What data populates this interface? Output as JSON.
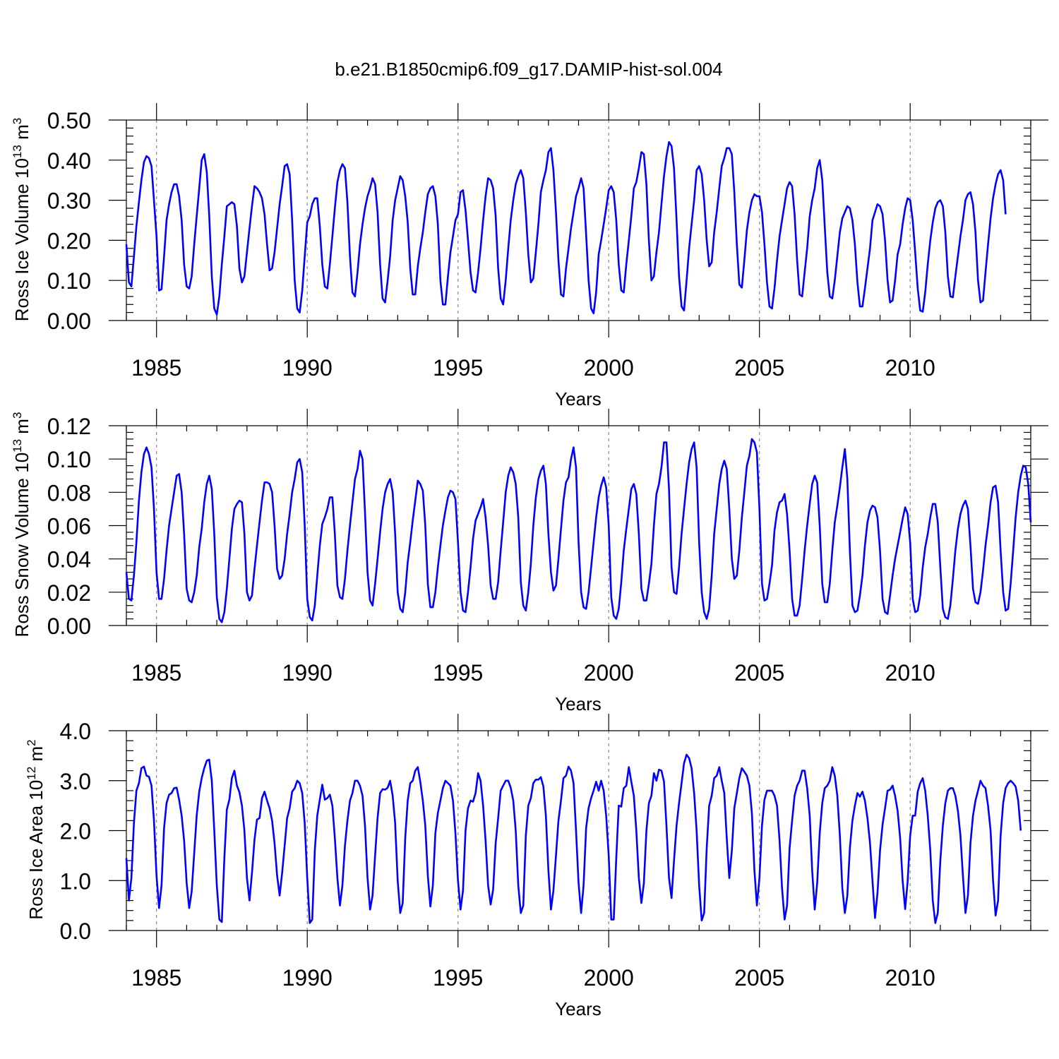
{
  "figure_title": "b.e21.B1850cmip6.f09_g17.DAMIP-hist-sol.004",
  "chart_data": [
    {
      "type": "line",
      "title": "b.e21.B1850cmip6.f09_g17.DAMIP-hist-sol.004",
      "ylabel": "Ross Ice Volume 10",
      "ylabel_exp": "13",
      "ylabel_unit": " m",
      "ylabel_unit_exp": "3",
      "xlabel": "Years",
      "xlim": [
        1984.0,
        2014.0
      ],
      "ylim": [
        0.0,
        0.5
      ],
      "yticks": [
        0.0,
        0.1,
        0.2,
        0.3,
        0.4,
        0.5
      ],
      "ytick_labels": [
        "0.00",
        "0.10",
        "0.20",
        "0.30",
        "0.40",
        "0.50"
      ],
      "xticks": [
        1985,
        1990,
        1995,
        2000,
        2005,
        2010
      ],
      "xtick_labels": [
        "1985",
        "1990",
        "1995",
        "2000",
        "2005",
        "2010"
      ],
      "grid": "dashed vertical at x ticks",
      "color": "#0000ff",
      "x_start": 1984.0,
      "x_step": 0.0833333,
      "values": [
        0.19,
        0.095,
        0.085,
        0.16,
        0.235,
        0.295,
        0.35,
        0.395,
        0.41,
        0.405,
        0.385,
        0.3,
        0.21,
        0.075,
        0.078,
        0.16,
        0.25,
        0.29,
        0.32,
        0.34,
        0.34,
        0.31,
        0.25,
        0.14,
        0.085,
        0.08,
        0.11,
        0.19,
        0.26,
        0.33,
        0.4,
        0.415,
        0.37,
        0.26,
        0.11,
        0.03,
        0.015,
        0.06,
        0.14,
        0.21,
        0.285,
        0.29,
        0.295,
        0.29,
        0.235,
        0.13,
        0.095,
        0.11,
        0.17,
        0.23,
        0.285,
        0.335,
        0.33,
        0.32,
        0.305,
        0.265,
        0.19,
        0.125,
        0.13,
        0.17,
        0.23,
        0.29,
        0.335,
        0.385,
        0.39,
        0.365,
        0.25,
        0.1,
        0.03,
        0.02,
        0.075,
        0.16,
        0.245,
        0.26,
        0.29,
        0.305,
        0.305,
        0.235,
        0.14,
        0.085,
        0.08,
        0.14,
        0.21,
        0.28,
        0.345,
        0.375,
        0.39,
        0.38,
        0.295,
        0.16,
        0.07,
        0.06,
        0.12,
        0.19,
        0.24,
        0.28,
        0.31,
        0.33,
        0.355,
        0.34,
        0.27,
        0.14,
        0.055,
        0.045,
        0.1,
        0.16,
        0.25,
        0.3,
        0.33,
        0.36,
        0.35,
        0.31,
        0.245,
        0.13,
        0.065,
        0.065,
        0.135,
        0.18,
        0.22,
        0.27,
        0.315,
        0.33,
        0.335,
        0.31,
        0.24,
        0.1,
        0.04,
        0.04,
        0.11,
        0.17,
        0.21,
        0.25,
        0.265,
        0.32,
        0.325,
        0.275,
        0.2,
        0.12,
        0.075,
        0.07,
        0.12,
        0.18,
        0.25,
        0.31,
        0.355,
        0.35,
        0.33,
        0.26,
        0.13,
        0.055,
        0.04,
        0.1,
        0.18,
        0.25,
        0.3,
        0.34,
        0.36,
        0.375,
        0.355,
        0.27,
        0.165,
        0.095,
        0.105,
        0.17,
        0.24,
        0.32,
        0.35,
        0.375,
        0.42,
        0.43,
        0.375,
        0.27,
        0.15,
        0.065,
        0.06,
        0.13,
        0.18,
        0.23,
        0.27,
        0.31,
        0.33,
        0.355,
        0.33,
        0.215,
        0.1,
        0.03,
        0.018,
        0.07,
        0.165,
        0.2,
        0.24,
        0.28,
        0.325,
        0.335,
        0.32,
        0.25,
        0.14,
        0.075,
        0.07,
        0.14,
        0.2,
        0.26,
        0.33,
        0.345,
        0.38,
        0.42,
        0.415,
        0.34,
        0.2,
        0.1,
        0.11,
        0.17,
        0.22,
        0.29,
        0.36,
        0.41,
        0.445,
        0.435,
        0.38,
        0.25,
        0.11,
        0.035,
        0.025,
        0.1,
        0.18,
        0.24,
        0.3,
        0.375,
        0.385,
        0.365,
        0.3,
        0.2,
        0.135,
        0.145,
        0.22,
        0.27,
        0.33,
        0.385,
        0.405,
        0.43,
        0.43,
        0.415,
        0.32,
        0.19,
        0.09,
        0.082,
        0.15,
        0.225,
        0.27,
        0.3,
        0.315,
        0.31,
        0.31,
        0.27,
        0.19,
        0.095,
        0.035,
        0.03,
        0.08,
        0.15,
        0.21,
        0.25,
        0.29,
        0.33,
        0.345,
        0.335,
        0.265,
        0.15,
        0.065,
        0.06,
        0.12,
        0.18,
        0.26,
        0.3,
        0.33,
        0.38,
        0.4,
        0.35,
        0.235,
        0.12,
        0.06,
        0.055,
        0.1,
        0.16,
        0.22,
        0.255,
        0.27,
        0.285,
        0.28,
        0.25,
        0.19,
        0.095,
        0.035,
        0.035,
        0.08,
        0.13,
        0.18,
        0.25,
        0.27,
        0.29,
        0.285,
        0.265,
        0.2,
        0.1,
        0.045,
        0.05,
        0.1,
        0.165,
        0.19,
        0.24,
        0.28,
        0.305,
        0.3,
        0.25,
        0.17,
        0.08,
        0.025,
        0.022,
        0.07,
        0.14,
        0.2,
        0.245,
        0.28,
        0.295,
        0.3,
        0.285,
        0.22,
        0.11,
        0.06,
        0.058,
        0.11,
        0.16,
        0.21,
        0.25,
        0.3,
        0.315,
        0.32,
        0.29,
        0.22,
        0.1,
        0.045,
        0.05,
        0.12,
        0.19,
        0.255,
        0.305,
        0.34,
        0.365,
        0.375,
        0.35,
        0.265
      ]
    },
    {
      "type": "line",
      "ylabel": "Ross Snow Volume 10",
      "ylabel_exp": "13",
      "ylabel_unit": " m",
      "ylabel_unit_exp": "3",
      "xlabel": "Years",
      "xlim": [
        1984.0,
        2014.0
      ],
      "ylim": [
        0.0,
        0.12
      ],
      "yticks": [
        0.0,
        0.02,
        0.04,
        0.06,
        0.08,
        0.1,
        0.12
      ],
      "ytick_labels": [
        "0.00",
        "0.02",
        "0.04",
        "0.06",
        "0.08",
        "0.10",
        "0.12"
      ],
      "xticks": [
        1985,
        1990,
        1995,
        2000,
        2005,
        2010
      ],
      "xtick_labels": [
        "1985",
        "1990",
        "1995",
        "2000",
        "2005",
        "2010"
      ],
      "grid": "dashed vertical at x ticks",
      "color": "#0000ff",
      "x_start": 1984.0,
      "x_step": 0.0833333,
      "values": [
        0.032,
        0.016,
        0.015,
        0.03,
        0.05,
        0.075,
        0.092,
        0.103,
        0.107,
        0.103,
        0.095,
        0.07,
        0.032,
        0.016,
        0.016,
        0.028,
        0.045,
        0.06,
        0.07,
        0.08,
        0.09,
        0.091,
        0.08,
        0.055,
        0.022,
        0.015,
        0.014,
        0.02,
        0.03,
        0.047,
        0.058,
        0.074,
        0.085,
        0.09,
        0.082,
        0.055,
        0.017,
        0.004,
        0.002,
        0.008,
        0.022,
        0.04,
        0.058,
        0.07,
        0.073,
        0.075,
        0.074,
        0.055,
        0.02,
        0.015,
        0.018,
        0.034,
        0.048,
        0.062,
        0.075,
        0.086,
        0.086,
        0.085,
        0.08,
        0.06,
        0.034,
        0.028,
        0.03,
        0.04,
        0.055,
        0.067,
        0.08,
        0.088,
        0.098,
        0.1,
        0.092,
        0.06,
        0.016,
        0.005,
        0.003,
        0.012,
        0.03,
        0.048,
        0.061,
        0.065,
        0.07,
        0.077,
        0.077,
        0.055,
        0.024,
        0.017,
        0.016,
        0.028,
        0.045,
        0.06,
        0.074,
        0.088,
        0.094,
        0.105,
        0.1,
        0.068,
        0.032,
        0.015,
        0.012,
        0.025,
        0.04,
        0.056,
        0.07,
        0.08,
        0.085,
        0.088,
        0.08,
        0.055,
        0.02,
        0.01,
        0.008,
        0.02,
        0.038,
        0.05,
        0.063,
        0.075,
        0.087,
        0.085,
        0.081,
        0.06,
        0.025,
        0.011,
        0.011,
        0.02,
        0.035,
        0.048,
        0.06,
        0.069,
        0.077,
        0.081,
        0.08,
        0.076,
        0.05,
        0.02,
        0.009,
        0.008,
        0.02,
        0.035,
        0.052,
        0.063,
        0.067,
        0.071,
        0.076,
        0.065,
        0.048,
        0.024,
        0.016,
        0.016,
        0.026,
        0.045,
        0.062,
        0.08,
        0.09,
        0.095,
        0.092,
        0.085,
        0.065,
        0.026,
        0.012,
        0.009,
        0.02,
        0.037,
        0.06,
        0.077,
        0.088,
        0.093,
        0.096,
        0.085,
        0.055,
        0.032,
        0.021,
        0.024,
        0.04,
        0.058,
        0.075,
        0.086,
        0.089,
        0.1,
        0.107,
        0.095,
        0.05,
        0.02,
        0.011,
        0.01,
        0.02,
        0.035,
        0.05,
        0.065,
        0.077,
        0.084,
        0.089,
        0.083,
        0.06,
        0.017,
        0.006,
        0.004,
        0.01,
        0.026,
        0.045,
        0.058,
        0.07,
        0.082,
        0.085,
        0.079,
        0.055,
        0.022,
        0.015,
        0.015,
        0.025,
        0.037,
        0.06,
        0.079,
        0.085,
        0.095,
        0.11,
        0.11,
        0.082,
        0.035,
        0.02,
        0.019,
        0.035,
        0.055,
        0.07,
        0.085,
        0.098,
        0.106,
        0.11,
        0.095,
        0.05,
        0.02,
        0.008,
        0.004,
        0.01,
        0.03,
        0.055,
        0.07,
        0.085,
        0.094,
        0.099,
        0.094,
        0.07,
        0.04,
        0.028,
        0.03,
        0.045,
        0.065,
        0.08,
        0.096,
        0.102,
        0.112,
        0.11,
        0.104,
        0.07,
        0.025,
        0.015,
        0.016,
        0.025,
        0.036,
        0.057,
        0.068,
        0.074,
        0.075,
        0.079,
        0.067,
        0.045,
        0.016,
        0.006,
        0.006,
        0.012,
        0.028,
        0.045,
        0.06,
        0.073,
        0.085,
        0.09,
        0.086,
        0.06,
        0.025,
        0.014,
        0.014,
        0.025,
        0.045,
        0.062,
        0.072,
        0.083,
        0.095,
        0.106,
        0.088,
        0.045,
        0.012,
        0.008,
        0.009,
        0.018,
        0.03,
        0.048,
        0.062,
        0.069,
        0.072,
        0.071,
        0.065,
        0.045,
        0.016,
        0.008,
        0.007,
        0.018,
        0.03,
        0.04,
        0.048,
        0.056,
        0.064,
        0.071,
        0.067,
        0.05,
        0.016,
        0.008,
        0.009,
        0.018,
        0.035,
        0.047,
        0.055,
        0.065,
        0.073,
        0.073,
        0.062,
        0.035,
        0.01,
        0.005,
        0.004,
        0.012,
        0.028,
        0.045,
        0.058,
        0.067,
        0.072,
        0.075,
        0.07,
        0.048,
        0.022,
        0.014,
        0.013,
        0.02,
        0.033,
        0.048,
        0.06,
        0.074,
        0.083,
        0.084,
        0.074,
        0.045,
        0.02,
        0.009,
        0.01,
        0.025,
        0.045,
        0.065,
        0.08,
        0.09,
        0.096,
        0.095,
        0.085,
        0.062
      ]
    },
    {
      "type": "line",
      "ylabel": "Ross Ice Area 10",
      "ylabel_exp": "12",
      "ylabel_unit": " m",
      "ylabel_unit_exp": "2",
      "xlabel": "Years",
      "xlim": [
        1984.0,
        2014.0
      ],
      "ylim": [
        0.0,
        4.0
      ],
      "yticks": [
        0.0,
        1.0,
        2.0,
        3.0,
        4.0
      ],
      "ytick_labels": [
        "0.0",
        "1.0",
        "2.0",
        "3.0",
        "4.0"
      ],
      "xticks": [
        1985,
        1990,
        1995,
        2000,
        2005,
        2010
      ],
      "xtick_labels": [
        "1985",
        "1990",
        "1995",
        "2000",
        "2005",
        "2010"
      ],
      "grid": "dashed vertical at x ticks",
      "color": "#0000ff",
      "x_start": 1984.0,
      "x_step": 0.0833333,
      "values": [
        1.45,
        0.6,
        1.05,
        2.15,
        2.8,
        2.95,
        3.25,
        3.28,
        3.1,
        3.08,
        2.9,
        2.2,
        1.1,
        0.45,
        0.9,
        2.05,
        2.55,
        2.72,
        2.75,
        2.85,
        2.86,
        2.62,
        2.3,
        1.8,
        0.95,
        0.45,
        0.78,
        1.55,
        2.3,
        2.78,
        3.05,
        3.25,
        3.4,
        3.42,
        3.0,
        2.0,
        0.9,
        0.22,
        0.17,
        1.45,
        2.42,
        2.62,
        3.05,
        3.2,
        2.9,
        2.77,
        2.5,
        2.0,
        1.05,
        0.6,
        1.15,
        1.82,
        2.22,
        2.25,
        2.65,
        2.78,
        2.6,
        2.45,
        2.2,
        1.75,
        1.1,
        0.7,
        1.15,
        1.7,
        2.25,
        2.45,
        2.78,
        2.85,
        3.0,
        2.95,
        2.75,
        2.15,
        1.05,
        0.15,
        0.22,
        1.6,
        2.3,
        2.62,
        2.92,
        2.62,
        2.65,
        2.72,
        2.5,
        1.85,
        1.05,
        0.5,
        0.9,
        1.7,
        2.2,
        2.6,
        2.75,
        3.0,
        3.0,
        2.9,
        2.7,
        2.1,
        1.05,
        0.42,
        0.7,
        1.5,
        2.25,
        2.75,
        2.83,
        2.82,
        2.86,
        3.0,
        2.7,
        2.15,
        1.0,
        0.35,
        0.55,
        1.85,
        2.6,
        2.95,
        3.0,
        3.2,
        3.27,
        2.98,
        2.6,
        2.1,
        1.1,
        0.48,
        0.9,
        1.95,
        2.35,
        2.6,
        2.85,
        3.0,
        2.95,
        2.9,
        2.6,
        1.95,
        1.0,
        0.42,
        0.8,
        2.0,
        2.45,
        2.6,
        2.58,
        2.75,
        3.15,
        3.0,
        2.5,
        1.8,
        0.9,
        0.52,
        0.82,
        1.75,
        2.25,
        2.8,
        2.9,
        3.0,
        3.0,
        2.86,
        2.6,
        2.0,
        0.9,
        0.35,
        0.5,
        1.9,
        2.5,
        2.65,
        2.95,
        3.02,
        3.02,
        3.07,
        2.88,
        2.3,
        1.2,
        0.42,
        0.8,
        1.5,
        2.2,
        2.6,
        3.05,
        3.1,
        3.28,
        3.2,
        2.95,
        2.0,
        0.95,
        0.35,
        0.9,
        2.05,
        2.45,
        2.65,
        2.8,
        2.98,
        2.8,
        3.0,
        2.8,
        2.3,
        1.5,
        0.22,
        0.22,
        1.45,
        2.5,
        2.48,
        2.85,
        2.9,
        3.27,
        2.98,
        2.7,
        2.0,
        1.05,
        0.55,
        0.95,
        2.0,
        2.55,
        2.7,
        3.15,
        3.0,
        3.22,
        3.2,
        2.98,
        2.1,
        1.05,
        0.65,
        1.4,
        2.1,
        2.55,
        2.95,
        3.35,
        3.52,
        3.45,
        3.25,
        2.75,
        2.0,
        0.9,
        0.2,
        0.35,
        1.65,
        2.5,
        2.7,
        3.05,
        3.1,
        3.27,
        3.0,
        2.75,
        1.85,
        1.05,
        1.6,
        2.45,
        2.75,
        3.05,
        3.25,
        3.18,
        3.1,
        2.9,
        2.35,
        1.2,
        0.5,
        1.05,
        2.1,
        2.62,
        2.8,
        2.8,
        2.8,
        2.7,
        2.5,
        1.8,
        0.85,
        0.22,
        0.5,
        1.65,
        2.2,
        2.7,
        2.9,
        3.0,
        3.2,
        3.2,
        2.85,
        2.3,
        1.2,
        0.42,
        0.95,
        1.95,
        2.55,
        2.85,
        2.9,
        3.0,
        3.27,
        3.1,
        2.7,
        1.9,
        0.85,
        0.35,
        0.7,
        1.65,
        2.2,
        2.5,
        2.75,
        2.68,
        2.78,
        2.6,
        2.25,
        1.75,
        1.0,
        0.25,
        0.75,
        1.6,
        2.12,
        2.45,
        2.8,
        2.82,
        2.9,
        2.7,
        2.4,
        1.85,
        1.0,
        0.43,
        0.98,
        1.9,
        2.3,
        2.3,
        2.78,
        2.95,
        3.05,
        2.8,
        2.3,
        1.6,
        0.6,
        0.15,
        0.35,
        1.4,
        2.1,
        2.55,
        2.8,
        2.85,
        2.85,
        2.7,
        2.4,
        1.9,
        1.1,
        0.35,
        0.7,
        1.75,
        2.3,
        2.6,
        2.8,
        3.0,
        2.9,
        2.85,
        2.5,
        2.0,
        1.0,
        0.3,
        0.6,
        1.9,
        2.55,
        2.85,
        2.95,
        3.0,
        2.95,
        2.88,
        2.6,
        2.0
      ]
    }
  ]
}
